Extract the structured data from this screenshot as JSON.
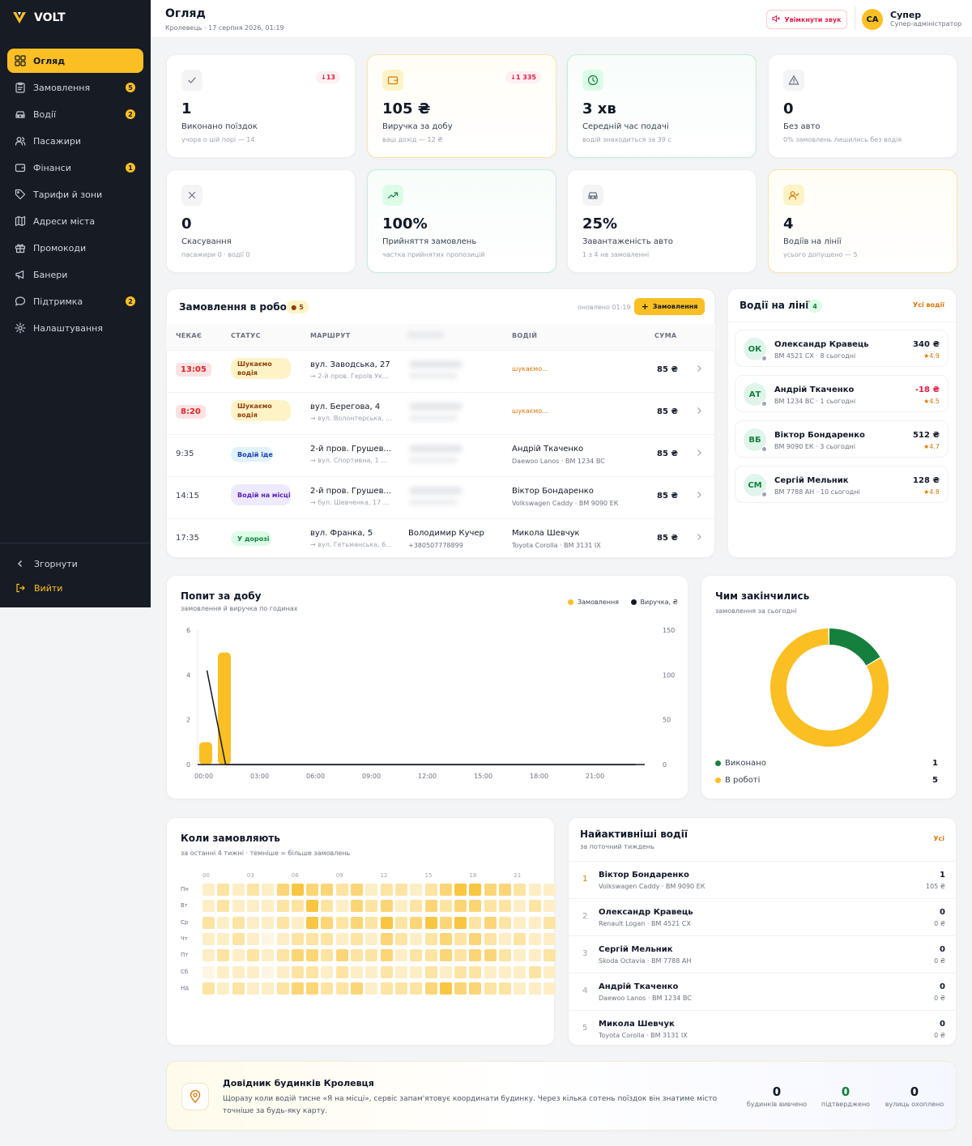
{
  "brand": {
    "name": "VOLT",
    "accent": "#fbbf24",
    "sidebar_bg": "#171b24"
  },
  "sidebar": {
    "items": [
      {
        "label": "Огляд",
        "icon": "grid-icon",
        "badge": ""
      },
      {
        "label": "Замовлення",
        "icon": "clipboard-icon",
        "badge": "5"
      },
      {
        "label": "Водії",
        "icon": "car-icon",
        "badge": "2"
      },
      {
        "label": "Пасажири",
        "icon": "users-icon",
        "badge": ""
      },
      {
        "label": "Фінанси",
        "icon": "wallet-icon",
        "badge": "1"
      },
      {
        "label": "Тарифи й зони",
        "icon": "tag-icon",
        "badge": ""
      },
      {
        "label": "Адреси міста",
        "icon": "map-icon",
        "badge": ""
      },
      {
        "label": "Промокоди",
        "icon": "gift-icon",
        "badge": ""
      },
      {
        "label": "Банери",
        "icon": "megaphone-icon",
        "badge": ""
      },
      {
        "label": "Підтримка",
        "icon": "chat-icon",
        "badge": "2"
      },
      {
        "label": "Налаштування",
        "icon": "gear-icon",
        "badge": ""
      }
    ],
    "collapse_label": "Згорнути",
    "logout_label": "Вийти"
  },
  "header": {
    "title": "Огляд",
    "subtitle": "Кролевець · 17 серпня 2026, 01:19",
    "sound_button": "Увімкнути звук",
    "user": {
      "initials": "СА",
      "name": "Супер",
      "role": "Супер-адміністратор"
    }
  },
  "stats": [
    {
      "value": "1",
      "label": "Виконано поїздок",
      "sub": "учора о цій порі — 14",
      "delta": "↓13",
      "icon": "check-icon",
      "tone": "gray"
    },
    {
      "value": "105 ₴",
      "label": "Виручка за добу",
      "sub": "ваш дохід — 12 ₴",
      "delta": "↓1 335",
      "icon": "wallet-icon",
      "tone": "yellow"
    },
    {
      "value": "3 хв",
      "label": "Середній час подачі",
      "sub": "водій знаходиться за 39 с",
      "delta": "",
      "icon": "clock-icon",
      "tone": "green"
    },
    {
      "value": "0",
      "label": "Без авто",
      "sub": "0% замовлень лишились без водія",
      "delta": "",
      "icon": "warning-icon",
      "tone": "gray"
    },
    {
      "value": "0",
      "label": "Скасування",
      "sub": "пасажири 0 · водії 0",
      "delta": "",
      "icon": "x-icon",
      "tone": "gray"
    },
    {
      "value": "100%",
      "label": "Прийняття замовлень",
      "sub": "частка прийнятих пропозицій",
      "delta": "",
      "icon": "trend-up-icon",
      "tone": "green"
    },
    {
      "value": "25%",
      "label": "Завантаженість авто",
      "sub": "1 з 4 на замовленні",
      "delta": "",
      "icon": "car-icon",
      "tone": "gray"
    },
    {
      "value": "4",
      "label": "Водіїв на лінії",
      "sub": "усього допущено — 5",
      "delta": "",
      "icon": "user-check-icon",
      "tone": "yellow"
    }
  ],
  "orders": {
    "title": "Замовлення в роботі",
    "count": "5",
    "updated": "оновлено 01:19",
    "button": "Замовлення",
    "columns": [
      "ЧЕКАЄ",
      "СТАТУС",
      "МАРШРУТ",
      "ВОДІЙ",
      "СУМА"
    ],
    "rows": [
      {
        "time": "13:05",
        "late": true,
        "status": "Шукаємо водія",
        "kind": "search",
        "from": "вул. Заводська, 27",
        "to": "→ 2-й пров. Героїв Ук...",
        "passenger": "",
        "phone": "",
        "driver": "шукаємо...",
        "car": "",
        "sum": "85 ₴"
      },
      {
        "time": "8:20",
        "late": true,
        "status": "Шукаємо водія",
        "kind": "search",
        "from": "вул. Берегова, 4",
        "to": "→ вул. Волонтерська, ...",
        "passenger": "",
        "phone": "",
        "driver": "шукаємо...",
        "car": "",
        "sum": "85 ₴"
      },
      {
        "time": "9:35",
        "late": false,
        "status": "Водій іде",
        "kind": "going",
        "from": "2-й пров. Грушев...",
        "to": "→ вул. Спортивна, 1 ...",
        "passenger": "",
        "phone": "",
        "driver": "Андрій Ткаченко",
        "car": "Daewoo Lanos · ВМ 1234 ВС",
        "sum": "85 ₴"
      },
      {
        "time": "14:15",
        "late": false,
        "status": "Водій на місці",
        "kind": "onplace",
        "from": "2-й пров. Грушев...",
        "to": "→ бул. Шевченка, 17 ...",
        "passenger": "",
        "phone": "",
        "driver": "Віктор Бондаренко",
        "car": "Volkswagen Caddy · ВМ 9090 ЕК",
        "sum": "85 ₴"
      },
      {
        "time": "17:35",
        "late": false,
        "status": "У дорозі",
        "kind": "road",
        "from": "вул. Франка, 5",
        "to": "→ вул. Гетьманська, 6...",
        "passenger": "Володимир Кучер",
        "phone": "+380507778899",
        "driver": "Микола Шевчук",
        "car": "Toyota Corolla · ВМ 3131 ІХ",
        "sum": "85 ₴"
      }
    ]
  },
  "drivers_online": {
    "title": "Водії на лінії",
    "count": "4",
    "link": "Усі водії",
    "items": [
      {
        "initials": "ОК",
        "name": "Олександр Кравець",
        "car": "ВМ 4521 СХ · 8 сьогодні",
        "money": "340 ₴",
        "rating": "★4.9",
        "negative": false
      },
      {
        "initials": "АТ",
        "name": "Андрій Ткаченко",
        "car": "ВМ 1234 ВС · 1 сьогодні",
        "money": "-18 ₴",
        "rating": "★4.5",
        "negative": true
      },
      {
        "initials": "ВБ",
        "name": "Віктор Бондаренко",
        "car": "ВМ 9090 ЕК · 3 сьогодні",
        "money": "512 ₴",
        "rating": "★4.7",
        "negative": false
      },
      {
        "initials": "СМ",
        "name": "Сергій Мельник",
        "car": "ВМ 7788 АН · 10 сьогодні",
        "money": "128 ₴",
        "rating": "★4.8",
        "negative": false
      }
    ]
  },
  "demand": {
    "title": "Попит за добу",
    "subtitle": "замовлення й виручка по годинах",
    "legend": [
      "Замовлення",
      "Виручка, ₴"
    ]
  },
  "chart_data": [
    {
      "type": "bar",
      "title": "Попит за добу",
      "subtitle": "замовлення й виручка по годинах",
      "x": [
        "00:00",
        "01:00",
        "02:00",
        "03:00",
        "04:00",
        "05:00",
        "06:00",
        "07:00",
        "08:00",
        "09:00",
        "10:00",
        "11:00",
        "12:00",
        "13:00",
        "14:00",
        "15:00",
        "16:00",
        "17:00",
        "18:00",
        "19:00",
        "20:00",
        "21:00",
        "22:00",
        "23:00"
      ],
      "x_tick_labels": [
        "00:00",
        "03:00",
        "06:00",
        "09:00",
        "12:00",
        "15:00",
        "18:00",
        "21:00"
      ],
      "series": [
        {
          "name": "Замовлення",
          "kind": "bar",
          "axis": "left",
          "color": "#fbbf24",
          "values": [
            1,
            5,
            0,
            0,
            0,
            0,
            0,
            0,
            0,
            0,
            0,
            0,
            0,
            0,
            0,
            0,
            0,
            0,
            0,
            0,
            0,
            0,
            0,
            0
          ]
        },
        {
          "name": "Виручка, ₴",
          "kind": "line",
          "axis": "right",
          "color": "#111827",
          "values": [
            105,
            0,
            0,
            0,
            0,
            0,
            0,
            0,
            0,
            0,
            0,
            0,
            0,
            0,
            0,
            0,
            0,
            0,
            0,
            0,
            0,
            0,
            0,
            0
          ]
        }
      ],
      "y_left_ticks": [
        0,
        2,
        4,
        6
      ],
      "y_right_ticks": [
        0,
        50,
        100,
        150
      ],
      "ylim_left": [
        0,
        6
      ],
      "ylim_right": [
        0,
        150
      ],
      "legend_position": "top-right"
    },
    {
      "type": "pie",
      "title": "Чим закінчились",
      "subtitle": "замовлення за сьогодні",
      "categories": [
        "Виконано",
        "В роботі"
      ],
      "values": [
        1,
        5
      ],
      "colors": [
        "#15803d",
        "#fbbf24"
      ]
    },
    {
      "type": "heatmap",
      "title": "Коли замовляють",
      "subtitle": "за останні 4 тижні · темніше = більше замовлень",
      "rows": [
        "Пн",
        "Вт",
        "Ср",
        "Чт",
        "Пт",
        "Сб",
        "Нд"
      ],
      "column_tick_labels": [
        "00",
        "03",
        "06",
        "09",
        "12",
        "15",
        "18",
        "21"
      ],
      "columns": 24,
      "values": [
        [
          1,
          2,
          1,
          2,
          1,
          3,
          4,
          3,
          3,
          2,
          3,
          1,
          2,
          2,
          1,
          2,
          3,
          4,
          4,
          3,
          3,
          2,
          1,
          1
        ],
        [
          1,
          2,
          1,
          1,
          1,
          2,
          2,
          4,
          2,
          1,
          3,
          2,
          3,
          1,
          2,
          3,
          2,
          3,
          3,
          2,
          2,
          1,
          2,
          1
        ],
        [
          2,
          1,
          2,
          1,
          1,
          2,
          1,
          4,
          3,
          2,
          3,
          2,
          4,
          2,
          3,
          4,
          3,
          4,
          2,
          3,
          2,
          1,
          1,
          2
        ],
        [
          1,
          1,
          2,
          1,
          0,
          1,
          2,
          2,
          2,
          1,
          2,
          1,
          3,
          2,
          1,
          2,
          3,
          2,
          3,
          2,
          1,
          2,
          1,
          1
        ],
        [
          1,
          2,
          1,
          2,
          1,
          2,
          3,
          3,
          2,
          3,
          2,
          2,
          3,
          1,
          2,
          2,
          3,
          2,
          3,
          3,
          2,
          1,
          1,
          2
        ],
        [
          0,
          1,
          1,
          1,
          0,
          1,
          2,
          2,
          1,
          2,
          1,
          1,
          2,
          1,
          1,
          2,
          1,
          2,
          2,
          1,
          1,
          1,
          2,
          1
        ],
        [
          2,
          1,
          2,
          1,
          1,
          2,
          3,
          3,
          2,
          2,
          3,
          1,
          2,
          2,
          2,
          3,
          4,
          3,
          3,
          2,
          2,
          1,
          1,
          1
        ]
      ]
    }
  ],
  "outcome": {
    "title": "Чим закінчились",
    "subtitle": "замовлення за сьогодні",
    "items": [
      {
        "label": "Виконано",
        "value": "1"
      },
      {
        "label": "В роботі",
        "value": "5"
      }
    ]
  },
  "heatmap": {
    "title": "Коли замовляють",
    "subtitle": "за останні 4 тижні · темніше = більше замовлень"
  },
  "top_drivers": {
    "title": "Найактивніші водії",
    "subtitle": "за поточний тиждень",
    "link": "Усі",
    "items": [
      {
        "rank": "1",
        "name": "Віктор Бондаренко",
        "car": "Volkswagen Caddy · ВМ 9090 ЕК",
        "trips": "1",
        "money": "105 ₴"
      },
      {
        "rank": "2",
        "name": "Олександр Кравець",
        "car": "Renault Logan · ВМ 4521 СХ",
        "trips": "0",
        "money": "0 ₴"
      },
      {
        "rank": "3",
        "name": "Сергій Мельник",
        "car": "Skoda Octavia · ВМ 7788 АН",
        "trips": "0",
        "money": "0 ₴"
      },
      {
        "rank": "4",
        "name": "Андрій Ткаченко",
        "car": "Daewoo Lanos · ВМ 1234 ВС",
        "trips": "0",
        "money": "0 ₴"
      },
      {
        "rank": "5",
        "name": "Микола Шевчук",
        "car": "Toyota Corolla · ВМ 3131 ІХ",
        "trips": "0",
        "money": "0 ₴"
      }
    ]
  },
  "buildings": {
    "title": "Довідник будинків Кролевця",
    "text": "Щоразу коли водій тисне «Я на місці», сервіс запам'ятовує координати будинку. Через кілька сотень поїздок він знатиме місто точніше за будь-яку карту.",
    "stats": [
      {
        "value": "0",
        "label": "будинків вивчено"
      },
      {
        "value": "0",
        "label": "підтверджено"
      },
      {
        "value": "0",
        "label": "вулиць охоплено"
      }
    ]
  }
}
